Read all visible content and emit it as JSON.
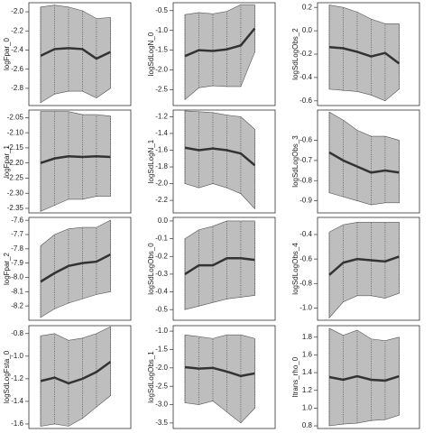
{
  "chart_data": [
    {
      "type": "line",
      "ylabel": "logFpar_0",
      "categories": [
        null,
        null,
        null,
        null,
        null,
        null
      ],
      "ylim": [
        -2.98,
        -1.905
      ],
      "yticks": [
        -2.8,
        -2.6,
        -2.4,
        -2.2,
        {
          "value": -2.0,
          "label": "-2.0"
        }
      ],
      "series": [
        {
          "color": "#333333",
          "values": [
            -2.46,
            -2.39,
            -2.38,
            -2.39,
            -2.49,
            -2.42
          ]
        },
        {
          "color": "#bebebe",
          "values": [
            -2.95,
            -2.86,
            -2.83,
            -2.83,
            -2.9,
            -2.8
          ]
        },
        {
          "color": "#bebebe",
          "values": [
            -1.95,
            -1.93,
            -1.95,
            -1.99,
            -2.07,
            -2.06
          ]
        }
      ]
    },
    {
      "type": "line",
      "ylabel": "logSdLogN_0",
      "categories": [
        null,
        null,
        null,
        null,
        null,
        null
      ],
      "ylim": [
        -2.9,
        -0.3
      ],
      "yticks": [
        -2.5,
        {
          "value": -2.0,
          "label": "-2.0"
        },
        -1.5,
        {
          "value": -1.0,
          "label": "-1.0"
        },
        -0.5
      ],
      "series": [
        {
          "color": "#333333",
          "values": [
            -1.65,
            -1.5,
            -1.52,
            -1.48,
            -1.38,
            -0.95
          ]
        },
        {
          "color": "#bebebe",
          "values": [
            -2.75,
            -2.45,
            -2.4,
            -2.42,
            -2.42,
            -1.55
          ]
        },
        {
          "color": "#bebebe",
          "values": [
            -0.6,
            -0.55,
            -0.58,
            -0.52,
            -0.35,
            -0.35
          ]
        }
      ]
    },
    {
      "type": "line",
      "ylabel": "logSdLogObs_2",
      "categories": [
        null,
        null,
        null,
        null,
        null,
        null
      ],
      "ylim": [
        -0.64,
        0.24
      ],
      "yticks": [
        -0.6,
        -0.4,
        -0.2,
        {
          "value": 0,
          "label": "0.0"
        },
        0.2
      ],
      "series": [
        {
          "color": "#333333",
          "values": [
            -0.14,
            -0.15,
            -0.18,
            -0.22,
            -0.19,
            -0.28
          ]
        },
        {
          "color": "#bebebe",
          "values": [
            -0.5,
            -0.51,
            -0.52,
            -0.55,
            -0.6,
            -0.5
          ]
        },
        {
          "color": "#bebebe",
          "values": [
            0.22,
            0.2,
            0.16,
            0.1,
            0.06,
            0.06
          ]
        }
      ]
    },
    {
      "type": "line",
      "ylabel": "logFpar_1",
      "categories": [
        null,
        null,
        null,
        null,
        null,
        null
      ],
      "ylim": [
        -2.365,
        -2.025
      ],
      "yticks": [
        -2.35,
        {
          "value": -2.3,
          "label": "-2.30"
        },
        -2.25,
        {
          "value": -2.2,
          "label": "-2.20"
        },
        -2.15,
        {
          "value": -2.1,
          "label": "-2.10"
        },
        -2.05
      ],
      "series": [
        {
          "color": "#333333",
          "values": [
            -2.2,
            -2.185,
            -2.178,
            -2.18,
            -2.178,
            -2.18
          ]
        },
        {
          "color": "#bebebe",
          "values": [
            -2.36,
            -2.34,
            -2.32,
            -2.32,
            -2.31,
            -2.31
          ]
        },
        {
          "color": "#bebebe",
          "values": [
            -2.03,
            -2.03,
            -2.03,
            -2.04,
            -2.04,
            -2.045
          ]
        }
      ]
    },
    {
      "type": "line",
      "ylabel": "logSdLogN_1",
      "categories": [
        null,
        null,
        null,
        null,
        null,
        null
      ],
      "ylim": [
        -2.35,
        -1.12
      ],
      "yticks": [
        -2.2,
        {
          "value": -2.0,
          "label": "-2.0"
        },
        -1.8,
        -1.6,
        -1.4,
        -1.2
      ],
      "series": [
        {
          "color": "#333333",
          "values": [
            -1.57,
            -1.6,
            -1.58,
            -1.6,
            -1.64,
            -1.78
          ]
        },
        {
          "color": "#bebebe",
          "values": [
            -2.0,
            -2.05,
            -2.0,
            -2.05,
            -2.12,
            -2.3
          ]
        },
        {
          "color": "#bebebe",
          "values": [
            -1.13,
            -1.14,
            -1.15,
            -1.18,
            -1.2,
            -1.35
          ]
        }
      ]
    },
    {
      "type": "line",
      "ylabel": "logSdLogObs_3",
      "categories": [
        null,
        null,
        null,
        null,
        null,
        null
      ],
      "ylim": [
        -0.96,
        -0.45
      ],
      "yticks": [
        -0.9,
        -0.8,
        -0.7,
        -0.6
      ],
      "series": [
        {
          "color": "#333333",
          "values": [
            -0.66,
            -0.7,
            -0.73,
            -0.76,
            -0.75,
            -0.76
          ]
        },
        {
          "color": "#bebebe",
          "values": [
            -0.86,
            -0.88,
            -0.9,
            -0.92,
            -0.91,
            -0.91
          ]
        },
        {
          "color": "#bebebe",
          "values": [
            -0.46,
            -0.5,
            -0.55,
            -0.58,
            -0.58,
            -0.6
          ]
        }
      ]
    },
    {
      "type": "line",
      "ylabel": "logFpar_2",
      "categories": [
        null,
        null,
        null,
        null,
        null,
        null
      ],
      "ylim": [
        -8.3,
        -7.58
      ],
      "yticks": [
        -8.2,
        -8.1,
        {
          "value": -8.0,
          "label": "-8.0"
        },
        -7.9,
        -7.8,
        -7.7,
        -7.6
      ],
      "series": [
        {
          "color": "#333333",
          "values": [
            -8.03,
            -7.97,
            -7.92,
            -7.9,
            -7.89,
            -7.84
          ]
        },
        {
          "color": "#bebebe",
          "values": [
            -8.28,
            -8.22,
            -8.18,
            -8.15,
            -8.12,
            -8.1
          ]
        },
        {
          "color": "#bebebe",
          "values": [
            -7.78,
            -7.7,
            -7.66,
            -7.65,
            -7.65,
            -7.6
          ]
        }
      ]
    },
    {
      "type": "line",
      "ylabel": "logSdLogObs_0",
      "categories": [
        null,
        null,
        null,
        null,
        null,
        null
      ],
      "ylim": [
        -0.56,
        0.02
      ],
      "yticks": [
        -0.5,
        -0.4,
        -0.3,
        -0.2,
        -0.1,
        {
          "value": 0,
          "label": "0.0"
        }
      ],
      "series": [
        {
          "color": "#333333",
          "values": [
            -0.3,
            -0.25,
            -0.25,
            -0.21,
            -0.21,
            -0.22
          ]
        },
        {
          "color": "#bebebe",
          "values": [
            -0.5,
            -0.48,
            -0.46,
            -0.44,
            -0.43,
            -0.42
          ]
        },
        {
          "color": "#bebebe",
          "values": [
            -0.1,
            -0.05,
            -0.03,
            0,
            0,
            0
          ]
        }
      ]
    },
    {
      "type": "line",
      "ylabel": "logSdLogObs_4",
      "categories": [
        null,
        null,
        null,
        null,
        null,
        null
      ],
      "ylim": [
        -1.1,
        -0.26
      ],
      "yticks": [
        {
          "value": -1.0,
          "label": "-1.0"
        },
        -0.8,
        -0.6,
        -0.4
      ],
      "series": [
        {
          "color": "#333333",
          "values": [
            -0.73,
            -0.63,
            -0.6,
            -0.61,
            -0.62,
            -0.58
          ]
        },
        {
          "color": "#bebebe",
          "values": [
            -1.08,
            -0.95,
            -0.9,
            -0.9,
            -0.92,
            -0.88
          ]
        },
        {
          "color": "#bebebe",
          "values": [
            -0.38,
            -0.32,
            -0.3,
            -0.3,
            -0.3,
            -0.3
          ]
        }
      ]
    },
    {
      "type": "line",
      "ylabel": "logSdLogFsta_0",
      "categories": [
        null,
        null,
        null,
        null,
        null,
        null
      ],
      "ylim": [
        -1.64,
        -0.73
      ],
      "yticks": [
        -1.6,
        -1.4,
        -1.2,
        {
          "value": -1.0,
          "label": "-1.0"
        },
        -0.8
      ],
      "series": [
        {
          "color": "#333333",
          "values": [
            -1.22,
            -1.19,
            -1.24,
            -1.2,
            -1.14,
            -1.05
          ]
        },
        {
          "color": "#bebebe",
          "values": [
            -1.62,
            -1.6,
            -1.62,
            -1.55,
            -1.45,
            -1.35
          ]
        },
        {
          "color": "#bebebe",
          "values": [
            -0.82,
            -0.8,
            -0.86,
            -0.84,
            -0.8,
            -0.74
          ]
        }
      ]
    },
    {
      "type": "line",
      "ylabel": "logSdLogObs_1",
      "categories": [
        null,
        null,
        null,
        null,
        null,
        null
      ],
      "ylim": [
        -3.65,
        -0.85
      ],
      "yticks": [
        -3.5,
        {
          "value": -3.0,
          "label": "-3.0"
        },
        -2.5,
        {
          "value": -2.0,
          "label": "-2.0"
        },
        -1.5,
        {
          "value": -1.0,
          "label": "-1.0"
        }
      ],
      "series": [
        {
          "color": "#333333",
          "values": [
            -1.98,
            -2.02,
            -2.0,
            -2.1,
            -2.22,
            -2.15
          ]
        },
        {
          "color": "#bebebe",
          "values": [
            -2.95,
            -3.0,
            -2.9,
            -3.2,
            -3.5,
            -3.1
          ]
        },
        {
          "color": "#bebebe",
          "values": [
            -1.1,
            -1.15,
            -1.2,
            -1.1,
            -1.1,
            -1.2
          ]
        }
      ]
    },
    {
      "type": "line",
      "ylabel": "ltrans_rho_0",
      "categories": [
        null,
        null,
        null,
        null,
        null,
        null
      ],
      "ylim": [
        0.77,
        1.93
      ],
      "yticks": [
        0.8,
        {
          "value": 1,
          "label": "1.0"
        },
        1.2,
        1.4,
        1.6,
        1.8
      ],
      "series": [
        {
          "color": "#333333",
          "values": [
            1.35,
            1.32,
            1.36,
            1.32,
            1.31,
            1.36
          ]
        },
        {
          "color": "#bebebe",
          "values": [
            0.8,
            0.82,
            0.83,
            0.86,
            0.87,
            0.92
          ]
        },
        {
          "color": "#bebebe",
          "values": [
            1.9,
            1.82,
            1.88,
            1.78,
            1.76,
            1.8
          ]
        }
      ]
    }
  ]
}
